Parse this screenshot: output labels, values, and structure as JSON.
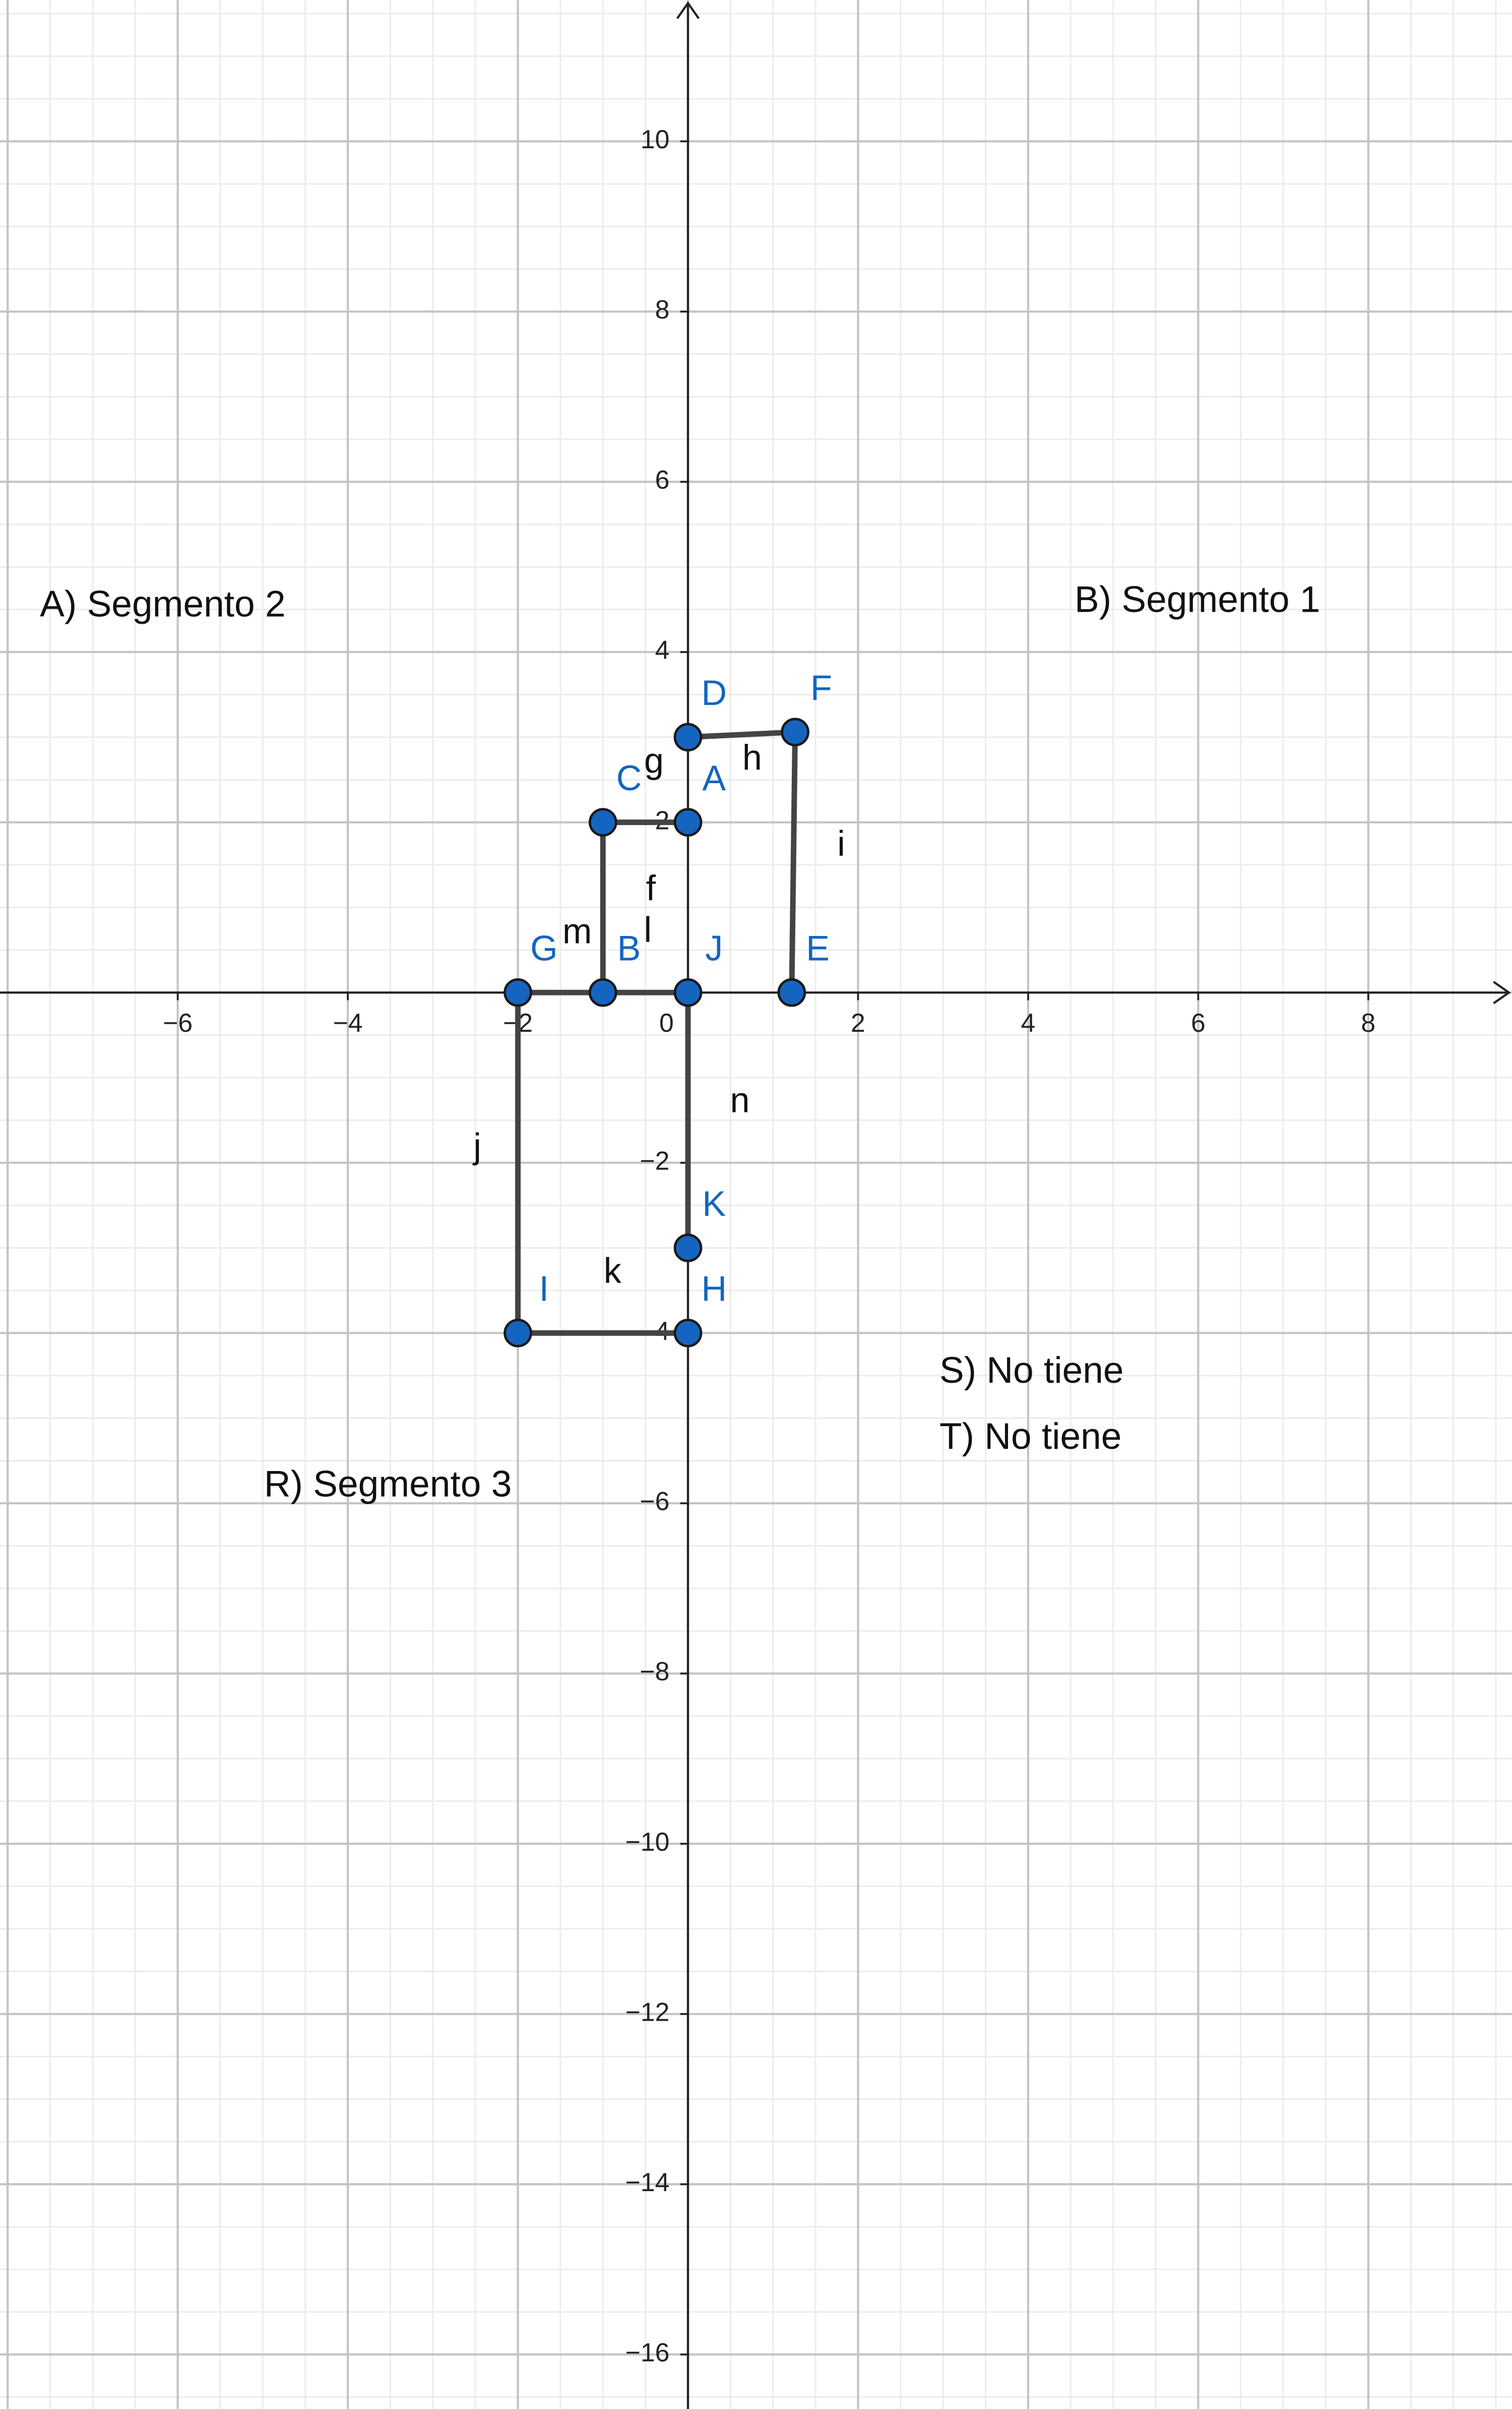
{
  "chart_data": {
    "type": "geometry",
    "xlim": [
      -8.09,
      9.69
    ],
    "ylim": [
      -16.64,
      11.66
    ],
    "xticks": [
      {
        "value": -6,
        "label": "−6"
      },
      {
        "value": -4,
        "label": "−4"
      },
      {
        "value": -2,
        "label": "−2"
      },
      0,
      2,
      4,
      6,
      8
    ],
    "yticks": [
      {
        "value": -16,
        "label": "−16"
      },
      {
        "value": -14,
        "label": "−14"
      },
      {
        "value": -12,
        "label": "−12"
      },
      {
        "value": -10,
        "label": "−10"
      },
      {
        "value": -8,
        "label": "−8"
      },
      {
        "value": -6,
        "label": "−6"
      },
      {
        "value": -4,
        "label": "−4"
      },
      {
        "value": -2,
        "label": "−2"
      },
      2,
      4,
      6,
      8,
      10
    ],
    "grid": {
      "major": 2,
      "minor": 0.5
    },
    "point_color": "#1565c0",
    "segment_color": "#444444",
    "points": [
      {
        "name": "A",
        "x": 0,
        "y": 2
      },
      {
        "name": "B",
        "x": -1,
        "y": 0
      },
      {
        "name": "C",
        "x": -1,
        "y": 2
      },
      {
        "name": "D",
        "x": 0,
        "y": 3
      },
      {
        "name": "E",
        "x": 1.22,
        "y": 0
      },
      {
        "name": "F",
        "x": 1.26,
        "y": 3.06
      },
      {
        "name": "G",
        "x": -2,
        "y": 0
      },
      {
        "name": "H",
        "x": 0,
        "y": -4
      },
      {
        "name": "I",
        "x": -2,
        "y": -4
      },
      {
        "name": "J",
        "x": 0,
        "y": 0
      },
      {
        "name": "K",
        "x": 0,
        "y": -3
      }
    ],
    "segments": [
      {
        "name": "f",
        "from": "B",
        "to": "C"
      },
      {
        "name": "g",
        "from": "C",
        "to": "A"
      },
      {
        "name": "h",
        "from": "D",
        "to": "F"
      },
      {
        "name": "i",
        "from": "F",
        "to": "E"
      },
      {
        "name": "j",
        "from": "G",
        "to": "I"
      },
      {
        "name": "k",
        "from": "I",
        "to": "H"
      },
      {
        "name": "l",
        "from": "B",
        "to": "J"
      },
      {
        "name": "m",
        "from": "G",
        "to": "B"
      },
      {
        "name": "n",
        "from": "J",
        "to": "K"
      }
    ],
    "annotations": [
      "A) Segmento 2",
      "B) Segmento 1",
      "S) No tiene",
      "T) No tiene",
      "R) Segmento 3"
    ]
  }
}
